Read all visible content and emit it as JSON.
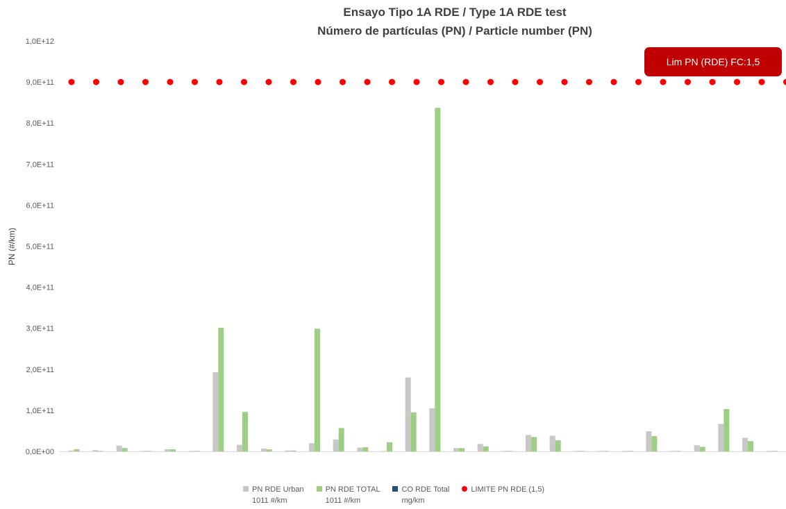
{
  "chart_data": {
    "type": "bar",
    "title_line1": "Ensayo Tipo 1A RDE / Type 1A RDE test",
    "title_line2": "Número de partículas (PN) / Particle number (PN)",
    "ylabel": "PN (#/km)",
    "xlabel": "",
    "ylim": [
      0,
      1000000000000
    ],
    "yticks": [
      "0,0E+00",
      "1,0E+11",
      "2,0E+11",
      "3,0E+11",
      "4,0E+11",
      "5,0E+11",
      "6,0E+11",
      "7,0E+11",
      "8,0E+11",
      "9,0E+11",
      "1,0E+12"
    ],
    "ytick_values": [
      0,
      100000000000,
      200000000000,
      300000000000,
      400000000000,
      500000000000,
      600000000000,
      700000000000,
      800000000000,
      900000000000,
      1000000000000
    ],
    "grid": false,
    "legend_position": "bottom",
    "series": [
      {
        "name": "PN RDE Urban 1011 #/km",
        "color": "#c8c8c8",
        "values": [
          2000000000,
          3000000000,
          14000000000,
          1000000000,
          5000000000,
          1000000000,
          193000000000,
          16000000000,
          7000000000,
          2000000000,
          20000000000,
          29000000000,
          9000000000,
          1000000000,
          180000000000,
          105000000000,
          8000000000,
          18000000000,
          1000000000,
          40000000000,
          38000000000,
          1000000000,
          1000000000,
          1000000000,
          49000000000,
          1000000000,
          15000000000,
          67000000000,
          33000000000,
          1000000000
        ]
      },
      {
        "name": "PN RDE TOTAL 1011 #/km",
        "color": "#9ccf82",
        "values": [
          5000000000,
          1000000000,
          8000000000,
          1000000000,
          5000000000,
          1000000000,
          301000000000,
          96000000000,
          5000000000,
          2000000000,
          299000000000,
          57000000000,
          10000000000,
          22000000000,
          95000000000,
          837000000000,
          8000000000,
          12000000000,
          1000000000,
          35000000000,
          27000000000,
          1000000000,
          1000000000,
          1000000000,
          37000000000,
          1000000000,
          11000000000,
          103000000000,
          25000000000,
          1000000000
        ]
      },
      {
        "name": "CO RDE Total mg/km",
        "color": "#1f4e79",
        "values": []
      },
      {
        "name": "LIMITE PN RDE (1,5)",
        "color": "#ff0000",
        "type": "dots",
        "constant": 900000000000
      }
    ],
    "annotation": "Lim  PN (RDE) FC:1,5",
    "annotation_color": "#c00000"
  },
  "legend": [
    {
      "line1": "PN RDE Urban",
      "line2": "1011 #/km",
      "color": "#c8c8c8",
      "shape": "square"
    },
    {
      "line1": "PN RDE TOTAL",
      "line2": "1011 #/km",
      "color": "#9ccf82",
      "shape": "square"
    },
    {
      "line1": "CO RDE Total",
      "line2": "mg/km",
      "color": "#1f4e79",
      "shape": "square"
    },
    {
      "line1": "LIMITE PN RDE (1,5)",
      "line2": "",
      "color": "#ff0000",
      "shape": "dot"
    }
  ]
}
